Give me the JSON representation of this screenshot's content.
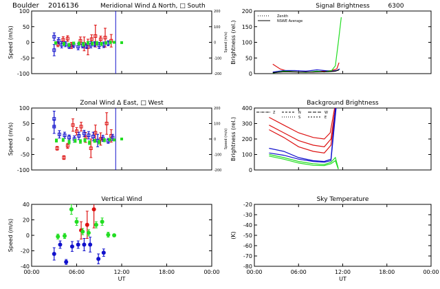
{
  "header": {
    "site": "Boulder",
    "date_code": "2016136"
  },
  "colors": {
    "red": "#dd1111",
    "green": "#22dd22",
    "blue": "#1111cc",
    "black": "#000000"
  },
  "chart_data": [
    {
      "id": "meridional",
      "type": "scatter",
      "title": "Meridional Wind   Δ North, □ South",
      "ylabel": "Speed (m/s)",
      "ylabel_right": "Speed (m/s)",
      "xlim": [
        0,
        24
      ],
      "ylim": [
        -100,
        100
      ],
      "ylim_right": [
        -200,
        200
      ],
      "yticks": [
        "100",
        "50",
        "0",
        "-50",
        "-100"
      ],
      "yticks_right": [
        "200",
        "100",
        "0",
        "-100",
        "-200"
      ],
      "xticks": [
        "00:00",
        "06:00",
        "12:00",
        "18:00",
        "00:00"
      ],
      "vline_x": 11.2,
      "series": [
        {
          "color": "red",
          "points": [
            [
              3.5,
              -6,
              8
            ],
            [
              4.2,
              8,
              10
            ],
            [
              4.8,
              12,
              9
            ],
            [
              5.3,
              -10,
              10
            ],
            [
              6.5,
              5,
              12
            ],
            [
              7.0,
              -5,
              22
            ],
            [
              7.5,
              -15,
              25
            ],
            [
              8.0,
              10,
              14
            ],
            [
              8.5,
              20,
              35
            ],
            [
              9.2,
              10,
              10
            ],
            [
              9.8,
              15,
              30
            ],
            [
              10.6,
              5,
              20
            ]
          ]
        },
        {
          "color": "blue",
          "points": [
            [
              3.0,
              18,
              12
            ],
            [
              3.0,
              -25,
              18
            ],
            [
              3.6,
              5,
              10
            ],
            [
              4.0,
              -8,
              10
            ],
            [
              4.5,
              -6,
              8
            ],
            [
              5.0,
              -12,
              8
            ],
            [
              5.6,
              -8,
              9
            ],
            [
              6.2,
              -14,
              10
            ],
            [
              6.8,
              -10,
              8
            ],
            [
              7.3,
              -12,
              8
            ],
            [
              7.9,
              -8,
              10
            ],
            [
              8.4,
              -6,
              8
            ],
            [
              9.0,
              -10,
              10
            ],
            [
              9.6,
              -8,
              9
            ],
            [
              10.2,
              -3,
              8
            ]
          ]
        },
        {
          "color": "green",
          "points": [
            [
              3.2,
              -2,
              4
            ],
            [
              4.3,
              -5,
              5
            ],
            [
              5.0,
              -8,
              5
            ],
            [
              5.6,
              -3,
              4
            ],
            [
              6.3,
              -4,
              5
            ],
            [
              6.9,
              -6,
              6
            ],
            [
              7.5,
              -2,
              5
            ],
            [
              8.1,
              -4,
              5
            ],
            [
              8.7,
              -3,
              6
            ],
            [
              9.3,
              -5,
              5
            ],
            [
              9.9,
              -2,
              4
            ],
            [
              10.5,
              0,
              4
            ],
            [
              11.0,
              0,
              3
            ],
            [
              12.0,
              -1,
              2
            ]
          ]
        }
      ]
    },
    {
      "id": "zonal",
      "type": "scatter",
      "title": "Zonal Wind   Δ East, □ West",
      "ylabel": "Speed (m/s)",
      "ylabel_right": "Speed (m/s)",
      "xlim": [
        0,
        24
      ],
      "ylim": [
        -100,
        100
      ],
      "ylim_right": [
        -200,
        200
      ],
      "yticks": [
        "100",
        "50",
        "0",
        "-50",
        "-100"
      ],
      "yticks_right": [
        "200",
        "100",
        "0",
        "-100",
        "-200"
      ],
      "xticks": [
        "00:00",
        "06:00",
        "12:00",
        "18:00",
        "00:00"
      ],
      "vline_x": 11.2,
      "series": [
        {
          "color": "red",
          "points": [
            [
              3.4,
              -30,
              6
            ],
            [
              4.3,
              -60,
              6
            ],
            [
              4.8,
              -22,
              8
            ],
            [
              5.5,
              45,
              20
            ],
            [
              6.0,
              25,
              12
            ],
            [
              6.6,
              40,
              14
            ],
            [
              7.2,
              5,
              16
            ],
            [
              7.9,
              -30,
              30
            ],
            [
              8.5,
              20,
              25
            ],
            [
              9.2,
              0,
              20
            ],
            [
              10.0,
              50,
              35
            ],
            [
              10.6,
              10,
              20
            ]
          ]
        },
        {
          "color": "blue",
          "points": [
            [
              3.0,
              65,
              25
            ],
            [
              3.0,
              40,
              22
            ],
            [
              3.7,
              15,
              12
            ],
            [
              4.4,
              12,
              10
            ],
            [
              5.0,
              5,
              8
            ],
            [
              5.7,
              0,
              10
            ],
            [
              6.3,
              10,
              12
            ],
            [
              7.0,
              18,
              10
            ],
            [
              7.6,
              12,
              12
            ],
            [
              8.2,
              8,
              14
            ],
            [
              8.8,
              -5,
              20
            ],
            [
              9.5,
              2,
              10
            ],
            [
              10.2,
              -6,
              8
            ],
            [
              10.8,
              5,
              10
            ]
          ]
        },
        {
          "color": "green",
          "points": [
            [
              3.3,
              -5,
              5
            ],
            [
              4.2,
              -3,
              5
            ],
            [
              5.0,
              -10,
              6
            ],
            [
              5.8,
              -6,
              5
            ],
            [
              6.5,
              -8,
              6
            ],
            [
              7.1,
              -4,
              5
            ],
            [
              7.7,
              -12,
              6
            ],
            [
              8.4,
              -6,
              5
            ],
            [
              9.0,
              -10,
              6
            ],
            [
              9.7,
              -4,
              5
            ],
            [
              10.4,
              -2,
              4
            ],
            [
              11.0,
              -3,
              3
            ],
            [
              12.0,
              0,
              2
            ]
          ]
        }
      ]
    },
    {
      "id": "vertical",
      "type": "scatter",
      "title": "Vertical Wind",
      "ylabel": "Speed (m/s)",
      "xlabel": "UT",
      "xlim": [
        0,
        24
      ],
      "ylim": [
        -50,
        50
      ],
      "yticks": [
        "40",
        "20",
        "0",
        "-20",
        "-40"
      ],
      "xticks": [
        "00:00",
        "06:00",
        "12:00",
        "18:00",
        "00:00"
      ],
      "series": [
        {
          "color": "red",
          "points": [
            [
              6.6,
              8,
              14
            ],
            [
              7.4,
              17,
              22
            ],
            [
              8.3,
              42,
              30
            ]
          ]
        },
        {
          "color": "blue",
          "points": [
            [
              3.0,
              -30,
              10
            ],
            [
              3.8,
              -15,
              6
            ],
            [
              4.6,
              -43,
              4
            ],
            [
              5.4,
              -18,
              8
            ],
            [
              6.2,
              -15,
              6
            ],
            [
              7.0,
              -15,
              10
            ],
            [
              7.8,
              -15,
              12
            ],
            [
              8.9,
              -38,
              8
            ],
            [
              9.6,
              -28,
              6
            ]
          ]
        },
        {
          "color": "green",
          "points": [
            [
              3.5,
              -2,
              4
            ],
            [
              4.4,
              -1,
              4
            ],
            [
              5.3,
              42,
              8
            ],
            [
              6.0,
              22,
              6
            ],
            [
              6.8,
              6,
              5
            ],
            [
              7.6,
              4,
              5
            ],
            [
              8.6,
              17,
              5
            ],
            [
              9.4,
              22,
              6
            ],
            [
              10.2,
              1,
              4
            ],
            [
              11.0,
              0,
              2
            ]
          ]
        }
      ]
    },
    {
      "id": "signal",
      "type": "line",
      "title": "Signal Brightness",
      "title_extra": "6300",
      "ylabel": "Brightness (rel.)",
      "xlim": [
        0,
        24
      ],
      "ylim": [
        0,
        200
      ],
      "yticks": [
        "200",
        "150",
        "100",
        "50",
        "0"
      ],
      "xticks": [
        "00:00",
        "06:00",
        "12:00",
        "18:00",
        "00:00"
      ],
      "legend": [
        "Zenith",
        "NSWE Average"
      ],
      "series": [
        {
          "color": "red",
          "points": [
            [
              2.5,
              30
            ],
            [
              3.5,
              15
            ],
            [
              4.5,
              8
            ],
            [
              6.0,
              5
            ],
            [
              8.0,
              5
            ],
            [
              9.5,
              8
            ],
            [
              10.5,
              10
            ],
            [
              11.2,
              15
            ],
            [
              11.5,
              35
            ]
          ]
        },
        {
          "color": "blue",
          "points": [
            [
              2.5,
              5
            ],
            [
              4.0,
              10
            ],
            [
              5.5,
              10
            ],
            [
              7.0,
              8
            ],
            [
              8.5,
              12
            ],
            [
              9.5,
              10
            ],
            [
              10.5,
              8
            ],
            [
              11.2,
              10
            ],
            [
              11.6,
              15
            ]
          ]
        },
        {
          "color": "green",
          "points": [
            [
              2.5,
              2
            ],
            [
              4.0,
              8
            ],
            [
              5.5,
              6
            ],
            [
              7.0,
              4
            ],
            [
              8.5,
              8
            ],
            [
              9.5,
              5
            ],
            [
              10.5,
              10
            ],
            [
              11.0,
              25
            ],
            [
              11.4,
              100
            ],
            [
              11.8,
              180
            ]
          ]
        },
        {
          "color": "black",
          "points": [
            [
              2.5,
              3
            ],
            [
              4.0,
              6
            ],
            [
              6.0,
              5
            ],
            [
              8.0,
              5
            ],
            [
              10.0,
              6
            ],
            [
              11.0,
              8
            ],
            [
              11.5,
              12
            ]
          ]
        }
      ]
    },
    {
      "id": "background",
      "type": "line",
      "title": "Background Brightness",
      "ylabel": "Brightness (rel.)",
      "xlim": [
        0,
        24
      ],
      "ylim": [
        0,
        400
      ],
      "yticks": [
        "400",
        "300",
        "200",
        "100",
        "0"
      ],
      "xticks": [
        "00:00",
        "06:00",
        "12:00",
        "18:00",
        "00:00"
      ],
      "legend": [
        "Z",
        "N",
        "S",
        "W",
        "E"
      ],
      "series": [
        {
          "color": "red",
          "points": [
            [
              2.0,
              340
            ],
            [
              4.0,
              290
            ],
            [
              6.0,
              240
            ],
            [
              8.0,
              210
            ],
            [
              9.5,
              200
            ],
            [
              10.3,
              240
            ],
            [
              10.9,
              400
            ]
          ]
        },
        {
          "color": "red",
          "points": [
            [
              2.0,
              290
            ],
            [
              4.0,
              240
            ],
            [
              6.0,
              190
            ],
            [
              8.0,
              160
            ],
            [
              9.5,
              150
            ],
            [
              10.4,
              200
            ],
            [
              11.0,
              400
            ]
          ]
        },
        {
          "color": "red",
          "points": [
            [
              2.0,
              260
            ],
            [
              4.0,
              210
            ],
            [
              6.0,
              150
            ],
            [
              8.0,
              120
            ],
            [
              9.5,
              110
            ],
            [
              10.4,
              160
            ],
            [
              11.0,
              400
            ]
          ]
        },
        {
          "color": "blue",
          "points": [
            [
              2.0,
              140
            ],
            [
              4.0,
              120
            ],
            [
              6.0,
              80
            ],
            [
              8.0,
              60
            ],
            [
              9.5,
              55
            ],
            [
              10.4,
              70
            ],
            [
              11.0,
              400
            ]
          ]
        },
        {
          "color": "blue",
          "points": [
            [
              2.0,
              110
            ],
            [
              4.0,
              95
            ],
            [
              6.0,
              70
            ],
            [
              8.0,
              55
            ],
            [
              9.5,
              50
            ],
            [
              10.4,
              60
            ],
            [
              11.1,
              400
            ]
          ]
        },
        {
          "color": "green",
          "points": [
            [
              2.0,
              100
            ],
            [
              4.0,
              80
            ],
            [
              6.0,
              55
            ],
            [
              8.0,
              40
            ],
            [
              9.5,
              35
            ],
            [
              10.4,
              50
            ],
            [
              11.0,
              80
            ],
            [
              11.4,
              10
            ]
          ]
        },
        {
          "color": "green",
          "points": [
            [
              2.0,
              90
            ],
            [
              4.0,
              70
            ],
            [
              6.0,
              45
            ],
            [
              8.0,
              30
            ],
            [
              9.5,
              28
            ],
            [
              10.4,
              40
            ],
            [
              11.0,
              60
            ],
            [
              11.4,
              5
            ]
          ]
        }
      ]
    },
    {
      "id": "skytemp",
      "type": "line",
      "title": "Sky Temperature",
      "ylabel": "(K)",
      "xlabel": "UT",
      "xlim": [
        0,
        24
      ],
      "ylim": [
        -80,
        -10
      ],
      "yticks": [
        "-20",
        "-30",
        "-40",
        "-50",
        "-60",
        "-70",
        "-80"
      ],
      "xticks": [
        "00:00",
        "06:00",
        "12:00",
        "18:00",
        "00:00"
      ],
      "series": []
    }
  ]
}
